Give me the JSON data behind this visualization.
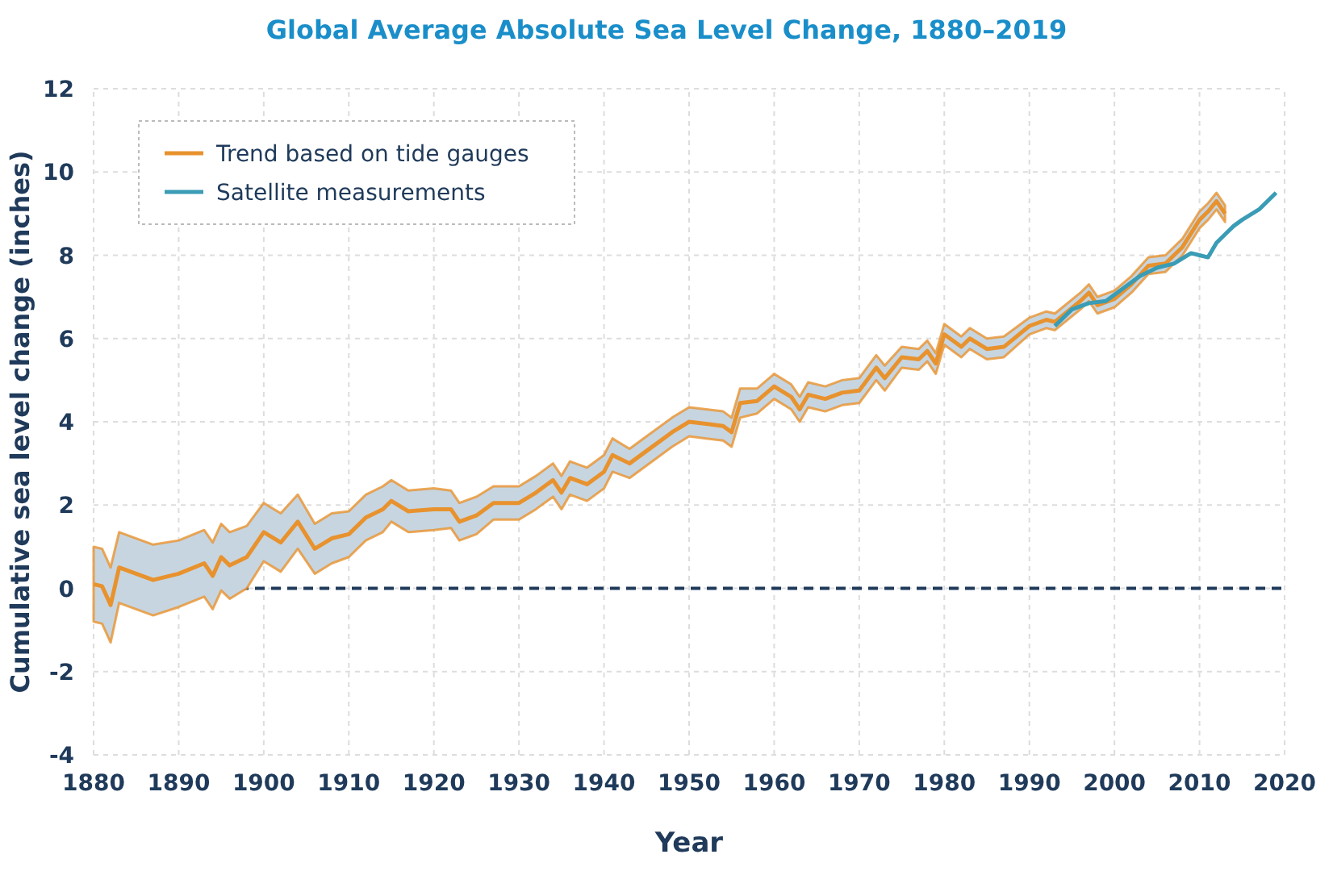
{
  "chart_data": {
    "type": "line",
    "title": "Global Average Absolute Sea Level Change, 1880–2019",
    "xlabel": "Year",
    "ylabel": "Cumulative sea level change (inches)",
    "xlim": [
      1880,
      2020
    ],
    "xticks": [
      1880,
      1890,
      1900,
      1910,
      1920,
      1930,
      1940,
      1950,
      1960,
      1970,
      1980,
      1990,
      2000,
      2010,
      2020
    ],
    "ylim": [
      -4,
      12
    ],
    "yticks": [
      -4,
      -2,
      0,
      2,
      4,
      6,
      8,
      10,
      12
    ],
    "grid": true,
    "legend": "top left",
    "ref_lines": [
      {
        "axis": "y",
        "value": 0,
        "color": "#1f3a5a",
        "line_style": "dashed"
      }
    ],
    "series": [
      {
        "name": "Trend based on tide gauges",
        "color": "#e8922e",
        "x": [
          1880,
          1881,
          1882,
          1883,
          1885,
          1887,
          1890,
          1893,
          1894,
          1895,
          1896,
          1898,
          1900,
          1902,
          1904,
          1906,
          1908,
          1910,
          1912,
          1914,
          1915,
          1917,
          1920,
          1922,
          1923,
          1925,
          1927,
          1930,
          1932,
          1934,
          1935,
          1936,
          1938,
          1940,
          1941,
          1943,
          1945,
          1948,
          1950,
          1952,
          1954,
          1955,
          1956,
          1958,
          1960,
          1962,
          1963,
          1964,
          1966,
          1968,
          1970,
          1972,
          1973,
          1975,
          1977,
          1978,
          1979,
          1980,
          1982,
          1983,
          1985,
          1987,
          1990,
          1992,
          1993,
          1996,
          1997,
          1998,
          2000,
          2002,
          2004,
          2006,
          2008,
          2010,
          2011,
          2012,
          2013
        ],
        "values": [
          0.1,
          0.05,
          -0.4,
          0.5,
          0.35,
          0.2,
          0.35,
          0.6,
          0.3,
          0.75,
          0.55,
          0.75,
          1.35,
          1.1,
          1.6,
          0.95,
          1.2,
          1.3,
          1.7,
          1.9,
          2.1,
          1.85,
          1.9,
          1.9,
          1.6,
          1.75,
          2.05,
          2.05,
          2.3,
          2.6,
          2.3,
          2.65,
          2.5,
          2.8,
          3.2,
          3.0,
          3.3,
          3.75,
          4.0,
          3.95,
          3.9,
          3.75,
          4.45,
          4.5,
          4.85,
          4.6,
          4.3,
          4.65,
          4.55,
          4.7,
          4.75,
          5.3,
          5.05,
          5.55,
          5.5,
          5.7,
          5.4,
          6.1,
          5.8,
          6.0,
          5.75,
          5.8,
          6.3,
          6.45,
          6.4,
          6.9,
          7.1,
          6.8,
          6.95,
          7.3,
          7.75,
          7.8,
          8.2,
          8.85,
          9.05,
          9.3,
          9.0
        ],
        "lower": [
          -0.8,
          -0.85,
          -1.3,
          -0.35,
          -0.5,
          -0.65,
          -0.45,
          -0.2,
          -0.5,
          -0.05,
          -0.25,
          0,
          0.65,
          0.4,
          0.95,
          0.35,
          0.6,
          0.75,
          1.15,
          1.35,
          1.6,
          1.35,
          1.4,
          1.45,
          1.15,
          1.3,
          1.65,
          1.65,
          1.9,
          2.2,
          1.9,
          2.25,
          2.1,
          2.4,
          2.8,
          2.65,
          2.95,
          3.4,
          3.65,
          3.6,
          3.55,
          3.4,
          4.1,
          4.2,
          4.55,
          4.3,
          4.0,
          4.35,
          4.25,
          4.4,
          4.45,
          5.0,
          4.75,
          5.3,
          5.25,
          5.45,
          5.15,
          5.85,
          5.55,
          5.75,
          5.5,
          5.55,
          6.1,
          6.25,
          6.2,
          6.7,
          6.9,
          6.6,
          6.75,
          7.1,
          7.55,
          7.6,
          8.0,
          8.65,
          8.85,
          9.1,
          8.8
        ],
        "upper": [
          1.0,
          0.95,
          0.5,
          1.35,
          1.2,
          1.05,
          1.15,
          1.4,
          1.1,
          1.55,
          1.35,
          1.5,
          2.05,
          1.8,
          2.25,
          1.55,
          1.8,
          1.85,
          2.25,
          2.45,
          2.6,
          2.35,
          2.4,
          2.35,
          2.05,
          2.2,
          2.45,
          2.45,
          2.7,
          3.0,
          2.7,
          3.05,
          2.9,
          3.2,
          3.6,
          3.35,
          3.65,
          4.1,
          4.35,
          4.3,
          4.25,
          4.1,
          4.8,
          4.8,
          5.15,
          4.9,
          4.6,
          4.95,
          4.85,
          5.0,
          5.05,
          5.6,
          5.35,
          5.8,
          5.75,
          5.95,
          5.65,
          6.35,
          6.05,
          6.25,
          6.0,
          6.05,
          6.5,
          6.65,
          6.6,
          7.1,
          7.3,
          7.0,
          7.15,
          7.5,
          7.95,
          8.0,
          8.4,
          9.05,
          9.25,
          9.5,
          9.2
        ]
      },
      {
        "name": "Satellite measurements",
        "color": "#3a9cb5",
        "x": [
          1993,
          1995,
          1997,
          1999,
          2001,
          2003,
          2005,
          2007,
          2009,
          2010,
          2011,
          2012,
          2014,
          2015,
          2017,
          2019
        ],
        "values": [
          6.3,
          6.7,
          6.85,
          6.9,
          7.2,
          7.5,
          7.7,
          7.8,
          8.05,
          8.0,
          7.95,
          8.3,
          8.7,
          8.85,
          9.1,
          9.5
        ]
      }
    ]
  }
}
